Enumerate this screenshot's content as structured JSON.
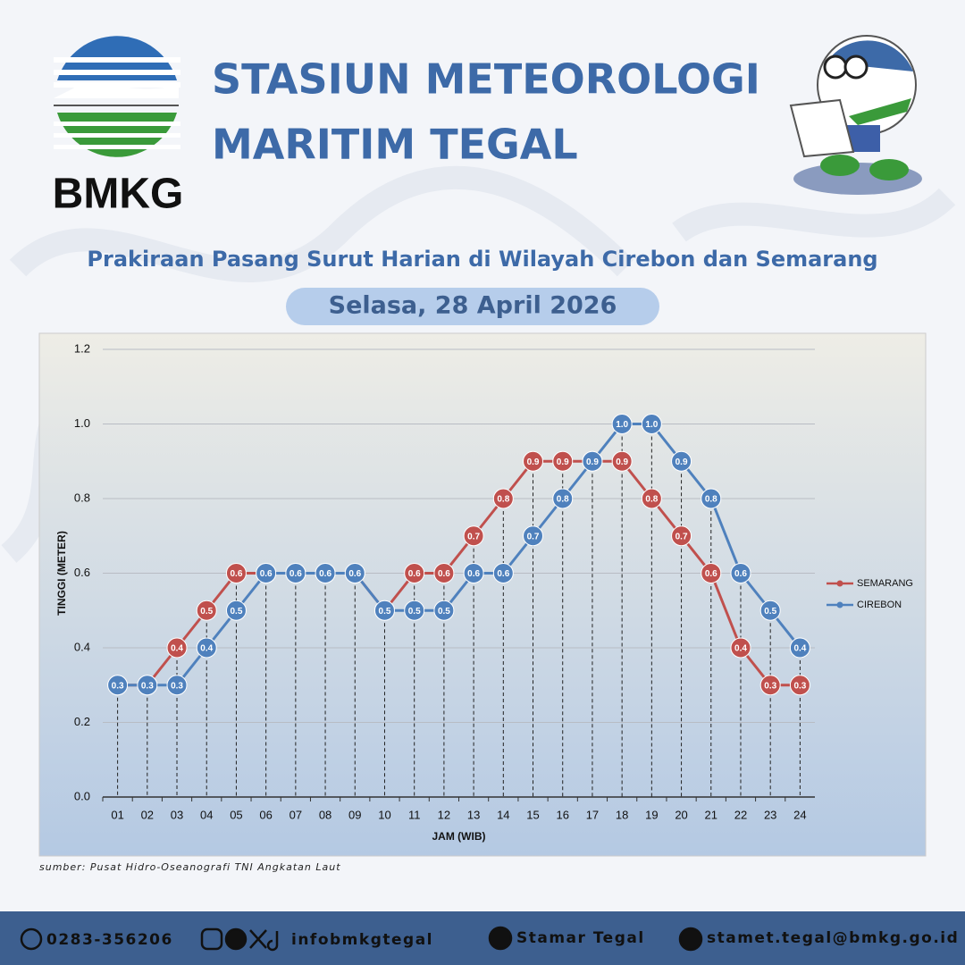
{
  "header": {
    "logo_text": "BMKG",
    "title_line1": "STASIUN METEOROLOGI",
    "title_line2": "MARITIM TEGAL",
    "subtitle": "Prakiraan Pasang Surut Harian di Wilayah Cirebon dan Semarang",
    "date": "Selasa, 28 April 2026"
  },
  "chart_data": {
    "type": "line",
    "y_label": "TINGGI (METER)",
    "x_label": "JAM (WIB)",
    "categories": [
      "01",
      "02",
      "03",
      "04",
      "05",
      "06",
      "07",
      "08",
      "09",
      "10",
      "11",
      "12",
      "13",
      "14",
      "15",
      "16",
      "17",
      "18",
      "19",
      "20",
      "21",
      "22",
      "23",
      "24"
    ],
    "series": [
      {
        "name": "SEMARANG",
        "color": "#c0504d",
        "values": [
          0.3,
          0.3,
          0.4,
          0.5,
          0.6,
          0.6,
          0.6,
          0.6,
          0.6,
          0.5,
          0.6,
          0.6,
          0.7,
          0.8,
          0.9,
          0.9,
          0.9,
          0.9,
          0.8,
          0.7,
          0.6,
          0.4,
          0.3,
          0.3
        ],
        "value_labels": [
          "0.3",
          "0.3",
          "0.4",
          "0.5",
          "0.6",
          "0.6",
          "0.6",
          "0.6",
          "0.6",
          "0.5",
          "0.6",
          "0.6",
          "0.7",
          "0.8",
          "0.9",
          "0.9",
          "0.9",
          "0.9",
          "0.8",
          "0.7",
          "0.6",
          "0.4",
          "0.3",
          "0.3"
        ]
      },
      {
        "name": "CIREBON",
        "color": "#4f81bd",
        "values": [
          0.3,
          0.3,
          0.3,
          0.4,
          0.5,
          0.6,
          0.6,
          0.6,
          0.6,
          0.5,
          0.5,
          0.5,
          0.6,
          0.6,
          0.7,
          0.8,
          0.9,
          1.0,
          1.0,
          0.9,
          0.8,
          0.6,
          0.5,
          0.4
        ],
        "value_labels": [
          "0.3",
          "0.3",
          "0.3",
          "0.4",
          "0.5",
          "0.6",
          "0.6",
          "0.6",
          "0.6",
          "0.5",
          "0.5",
          "0.5",
          "0.6",
          "0.6",
          "0.7",
          "0.8",
          "0.9",
          "1.0",
          "1.0",
          "0.9",
          "0.8",
          "0.6",
          "0.5",
          "0.4"
        ]
      }
    ],
    "ylim": [
      0,
      1.2
    ],
    "yticks": [
      {
        "value": 0,
        "label": "0.0"
      },
      0.2,
      0.4,
      0.6,
      0.8,
      {
        "value": 1,
        "label": "1.0"
      },
      1.2
    ],
    "grid": true,
    "legend": "right"
  },
  "source": "sumber: Pusat Hidro-Oseanografi TNI Angkatan Laut",
  "footer": {
    "phone": "0283-356206",
    "social": "infobmkgtegal",
    "youtube": "Stamar Tegal",
    "email": "stamet.tegal@bmkg.go.id"
  }
}
